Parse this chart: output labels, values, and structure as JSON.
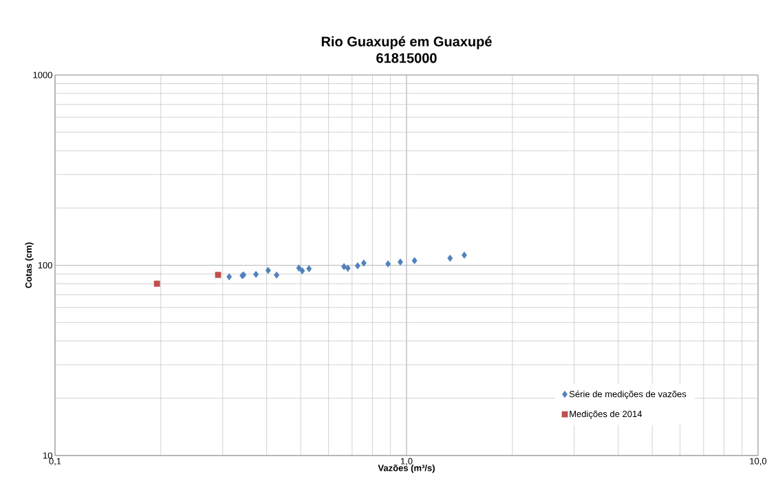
{
  "chart_data": {
    "type": "scatter",
    "title": "Rio Guaxupé em Guaxupé",
    "subtitle": "61815000",
    "xlabel": "Vazões (m³/s)",
    "ylabel": "Cotas (cm)",
    "log": "xy",
    "xlim": [
      0.1,
      10
    ],
    "ylim": [
      10,
      1000
    ],
    "xticks": [
      {
        "value": 0.1,
        "label": "0,1"
      },
      {
        "value": 1,
        "label": "1,0"
      },
      {
        "value": 10,
        "label": "10,0"
      }
    ],
    "yticks": [
      10,
      100,
      1000
    ],
    "grid": true,
    "legend": "bottom right",
    "series": [
      {
        "name": "Série de medições de vazões",
        "color": "#4f81bd",
        "marker": "diamond",
        "x": [
          0.313,
          0.341,
          0.344,
          0.373,
          0.404,
          0.427,
          0.494,
          0.505,
          0.528,
          0.664,
          0.681,
          0.726,
          0.756,
          0.886,
          0.96,
          1.054,
          1.33,
          1.46
        ],
        "values": [
          87,
          88.3,
          89,
          89.5,
          94,
          88.8,
          96.7,
          93.6,
          95.9,
          98.3,
          96.5,
          99.4,
          102.8,
          101.7,
          104,
          105.7,
          108.9,
          113
        ]
      },
      {
        "name": "Medições de 2014",
        "color": "#c0504d",
        "marker": "square",
        "x": [
          0.195,
          0.291
        ],
        "values": [
          80,
          89
        ]
      }
    ]
  }
}
